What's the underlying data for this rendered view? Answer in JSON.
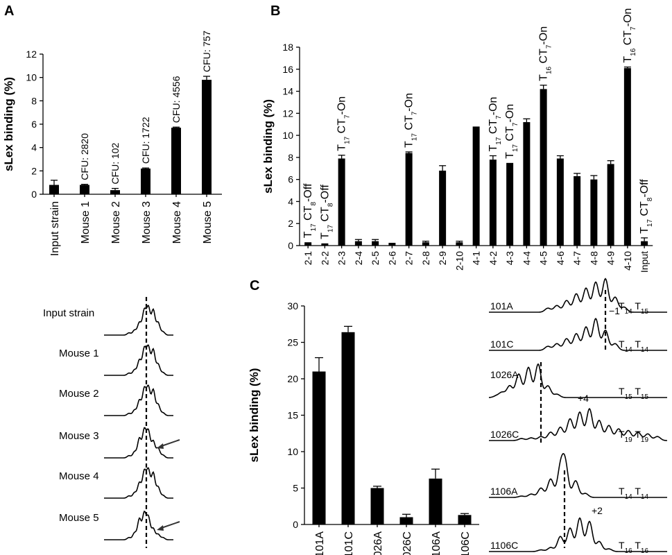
{
  "panels": {
    "A": "A",
    "B": "B",
    "C": "C"
  },
  "chart_data": [
    {
      "id": "A",
      "type": "bar",
      "ylabel": "sLex binding (%)",
      "ylim": [
        0,
        12
      ],
      "yticks": [
        0,
        2,
        4,
        6,
        8,
        10,
        12
      ],
      "categories": [
        "Input strain",
        "Mouse 1",
        "Mouse 2",
        "Mouse 3",
        "Mouse 4",
        "Mouse 5"
      ],
      "values": [
        0.8,
        0.8,
        0.35,
        2.2,
        5.7,
        9.8
      ],
      "errors": [
        0.4,
        0.05,
        0.15,
        0.05,
        0.05,
        0.3
      ],
      "bar_labels": [
        "",
        "CFU: 2820",
        "CFU: 102",
        "CFU: 1722",
        "CFU: 4556",
        "CFU: 757"
      ]
    },
    {
      "id": "B",
      "type": "bar",
      "ylabel": "sLex binding (%)",
      "ylim": [
        0,
        18
      ],
      "yticks": [
        0,
        2,
        4,
        6,
        8,
        10,
        12,
        14,
        16,
        18
      ],
      "categories": [
        "2-1",
        "2-2",
        "2-3",
        "2-4",
        "2-5",
        "2-6",
        "2-7",
        "2-8",
        "2-9",
        "2-10",
        "4-1",
        "4-2",
        "4-3",
        "4-4",
        "4-5",
        "4-6",
        "4-7",
        "4-8",
        "4-9",
        "4-10",
        "Input"
      ],
      "values": [
        0.3,
        0.2,
        7.9,
        0.4,
        0.4,
        0.25,
        8.4,
        0.3,
        6.8,
        0.3,
        10.8,
        7.8,
        7.5,
        11.2,
        14.2,
        7.9,
        6.3,
        6.0,
        7.4,
        16.1,
        0.4
      ],
      "errors": [
        0,
        0,
        0.3,
        0.15,
        0.15,
        0,
        0.1,
        0.1,
        0.45,
        0.1,
        0,
        0.35,
        0,
        0.3,
        0.35,
        0.25,
        0.25,
        0.35,
        0.3,
        0.1,
        0.3
      ],
      "bar_labels": [
        {
          "base": "T",
          "sub1": "17",
          "mid": " CT",
          "sub2": "8",
          "tail": "-Off"
        },
        {
          "base": "T",
          "sub1": "17",
          "mid": " CT",
          "sub2": "8",
          "tail": "-Off"
        },
        {
          "base": "T",
          "sub1": "17",
          "mid": " CT",
          "sub2": "7",
          "tail": "-On"
        },
        null,
        null,
        null,
        {
          "base": "T",
          "sub1": "17",
          "mid": " CT",
          "sub2": "7",
          "tail": "-On"
        },
        null,
        null,
        null,
        null,
        {
          "base": "T",
          "sub1": "17",
          "mid": " CT",
          "sub2": "7",
          "tail": "-On"
        },
        {
          "base": "T",
          "sub1": "17",
          "mid": " CT",
          "sub2": "7",
          "tail": "-On"
        },
        null,
        {
          "base": "T",
          "sub1": "16",
          "mid": " CT",
          "sub2": "7",
          "tail": "-On"
        },
        null,
        null,
        null,
        null,
        {
          "base": "T",
          "sub1": "16",
          "mid": " CT",
          "sub2": "7",
          "tail": "-On"
        },
        {
          "base": "T",
          "sub1": "17",
          "mid": " CT",
          "sub2": "8",
          "tail": "-Off"
        }
      ]
    },
    {
      "id": "C",
      "type": "bar",
      "ylabel": "sLex binding (%)",
      "ylim": [
        0,
        30
      ],
      "yticks": [
        0,
        5,
        10,
        15,
        20,
        25,
        30
      ],
      "categories": [
        "101A",
        "101C",
        "1026A",
        "1026C",
        "1106A",
        "1106C"
      ],
      "values": [
        21,
        26.4,
        5,
        1,
        6.3,
        1.3
      ],
      "errors": [
        1.9,
        0.8,
        0.25,
        0.4,
        1.3,
        0.2
      ]
    }
  ],
  "traces_a": {
    "labels": [
      "Input strain",
      "Mouse 1",
      "Mouse 2",
      "Mouse 3",
      "Mouse 4",
      "Mouse 5"
    ],
    "arrows": [
      false,
      false,
      false,
      true,
      false,
      true
    ]
  },
  "traces_c": [
    {
      "label": "101A",
      "t1": "14",
      "t2": "15",
      "note": ""
    },
    {
      "label": "101C",
      "t1": "14",
      "t2": "14",
      "note": "−1"
    },
    {
      "label": "1026A",
      "t1": "15",
      "t2": "15",
      "note": ""
    },
    {
      "label": "1026C",
      "t1": "19",
      "t2": "19",
      "note": "+4"
    },
    {
      "label": "1106A",
      "t1": "14",
      "t2": "14",
      "note": ""
    },
    {
      "label": "1106C",
      "t1": "16",
      "t2": "16",
      "note": "+2"
    }
  ]
}
